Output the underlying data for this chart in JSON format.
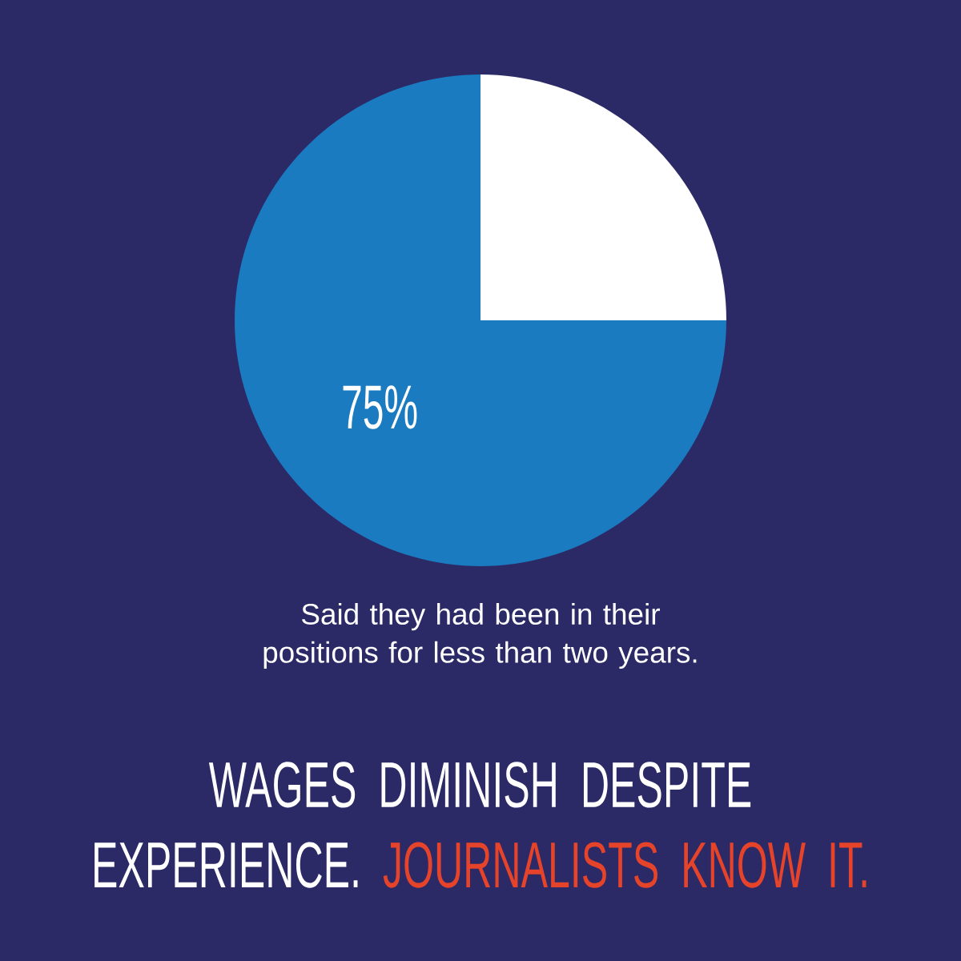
{
  "chart_data": {
    "type": "pie",
    "title": "WAGES DIMINISH DESPITE EXPERIENCE.",
    "subtitle": "JOURNALISTS KNOW IT.",
    "categories": [
      null,
      null
    ],
    "values": [
      75,
      25
    ],
    "colors": [
      "#1b7bc0",
      "#ffffff"
    ],
    "value_labels": [
      "75%",
      null
    ],
    "annotations": [
      "Said they had been in their positions for less than two years."
    ]
  }
}
